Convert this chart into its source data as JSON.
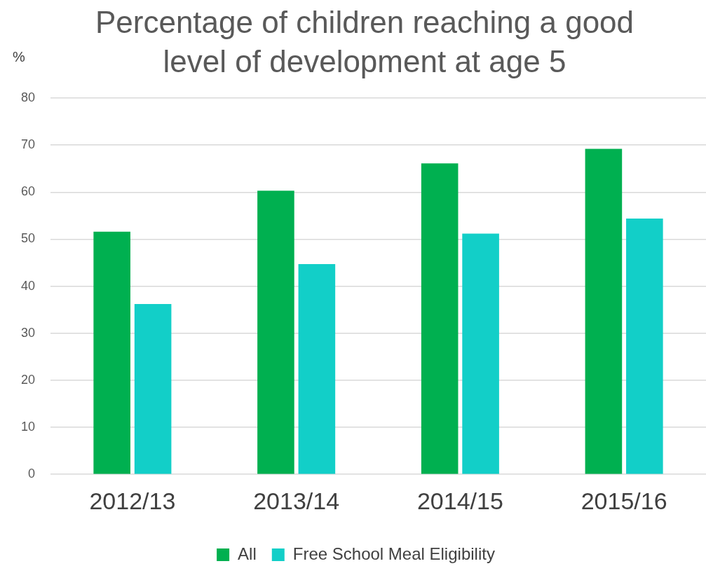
{
  "chart_data": {
    "type": "bar",
    "title": "Percentage of children reaching a good level of development at age 5",
    "ylabel": "%",
    "categories": [
      "2012/13",
      "2013/14",
      "2014/15",
      "2015/16"
    ],
    "series": [
      {
        "name": "All",
        "color": "#00b050",
        "values": [
          51.6,
          60.3,
          66.1,
          69.2
        ]
      },
      {
        "name": "Free School Meal Eligibility",
        "color": "#12cfc8",
        "values": [
          36.2,
          44.7,
          51.2,
          54.4
        ]
      }
    ],
    "ylim": [
      0,
      80
    ],
    "yticks": [
      0,
      10,
      20,
      30,
      40,
      50,
      60,
      70,
      80
    ],
    "grid": "y",
    "legend": "bottom"
  }
}
